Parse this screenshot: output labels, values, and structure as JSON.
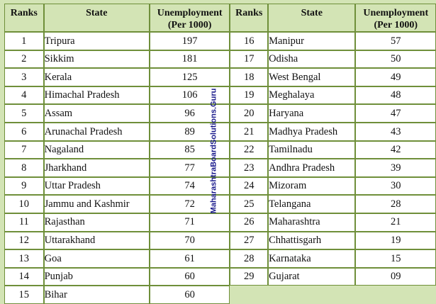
{
  "headers": {
    "rank": "Ranks",
    "state": "State",
    "unemployment_line1": "Unemployment",
    "unemployment_line2": "(Per 1000)"
  },
  "left_rows": [
    {
      "rank": "1",
      "state": "Tripura",
      "value": "197"
    },
    {
      "rank": "2",
      "state": "Sikkim",
      "value": "181"
    },
    {
      "rank": "3",
      "state": "Kerala",
      "value": "125"
    },
    {
      "rank": "4",
      "state": "Himachal Pradesh",
      "value": "106"
    },
    {
      "rank": "5",
      "state": "Assam",
      "value": "96"
    },
    {
      "rank": "6",
      "state": "Arunachal Pradesh",
      "value": "89"
    },
    {
      "rank": "7",
      "state": "Nagaland",
      "value": "85"
    },
    {
      "rank": "8",
      "state": "Jharkhand",
      "value": "77"
    },
    {
      "rank": "9",
      "state": "Uttar Pradesh",
      "value": "74"
    },
    {
      "rank": "10",
      "state": "Jammu and Kashmir",
      "value": "72"
    },
    {
      "rank": "11",
      "state": "Rajasthan",
      "value": "71"
    },
    {
      "rank": "12",
      "state": "Uttarakhand",
      "value": "70"
    },
    {
      "rank": "13",
      "state": "Goa",
      "value": "61"
    },
    {
      "rank": "14",
      "state": "Punjab",
      "value": "60"
    },
    {
      "rank": "15",
      "state": "Bihar",
      "value": "60"
    }
  ],
  "right_rows": [
    {
      "rank": "16",
      "state": "Manipur",
      "value": "57"
    },
    {
      "rank": "17",
      "state": "Odisha",
      "value": "50"
    },
    {
      "rank": "18",
      "state": "West Bengal",
      "value": "49"
    },
    {
      "rank": "19",
      "state": "Meghalaya",
      "value": "48"
    },
    {
      "rank": "20",
      "state": "Haryana",
      "value": "47"
    },
    {
      "rank": "21",
      "state": "Madhya Pradesh",
      "value": "43"
    },
    {
      "rank": "22",
      "state": "Tamilnadu",
      "value": "42"
    },
    {
      "rank": "23",
      "state": "Andhra Pradesh",
      "value": "39"
    },
    {
      "rank": "24",
      "state": "Mizoram",
      "value": "30"
    },
    {
      "rank": "25",
      "state": "Telangana",
      "value": "28"
    },
    {
      "rank": "26",
      "state": "Maharashtra",
      "value": "21"
    },
    {
      "rank": "27",
      "state": "Chhattisgarh",
      "value": "19"
    },
    {
      "rank": "28",
      "state": "Karnataka",
      "value": "15"
    },
    {
      "rank": "29",
      "state": "Gujarat",
      "value": "09"
    }
  ],
  "watermark": "MaharashtraBoardSolutions.Guru",
  "colors": {
    "background": "#d3e4b5",
    "border": "#6f8f3a",
    "cell": "#ffffff",
    "watermark": "#1a1a8c"
  }
}
